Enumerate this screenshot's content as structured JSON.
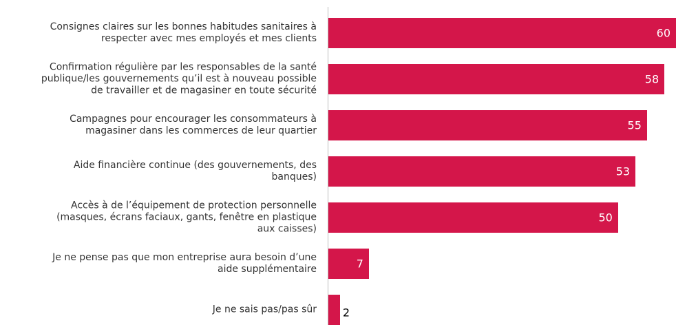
{
  "chart_data": {
    "type": "bar",
    "orientation": "horizontal",
    "categories": [
      "Consignes claires sur les bonnes habitudes sanitaires à\nrespecter avec mes employés et mes clients",
      "Confirmation régulière par les responsables de la santé\npublique/les gouvernements qu’il est à nouveau possible\nde travailler et de magasiner en toute sécurité",
      "Campagnes pour encourager les consommateurs à\nmagasiner dans les commerces de leur quartier",
      "Aide financière continue (des gouvernements, des\nbanques)",
      "Accès à de l’équipement de protection personnelle\n(masques, écrans faciaux, gants, fenêtre en plastique\naux caisses)",
      "Je ne pense pas que mon entreprise aura besoin d’une\naide supplémentaire",
      "Je ne sais pas/pas sûr"
    ],
    "values": [
      60,
      58,
      55,
      53,
      50,
      7,
      2
    ],
    "color": "#d4164a",
    "xlim": [
      0,
      60
    ]
  }
}
